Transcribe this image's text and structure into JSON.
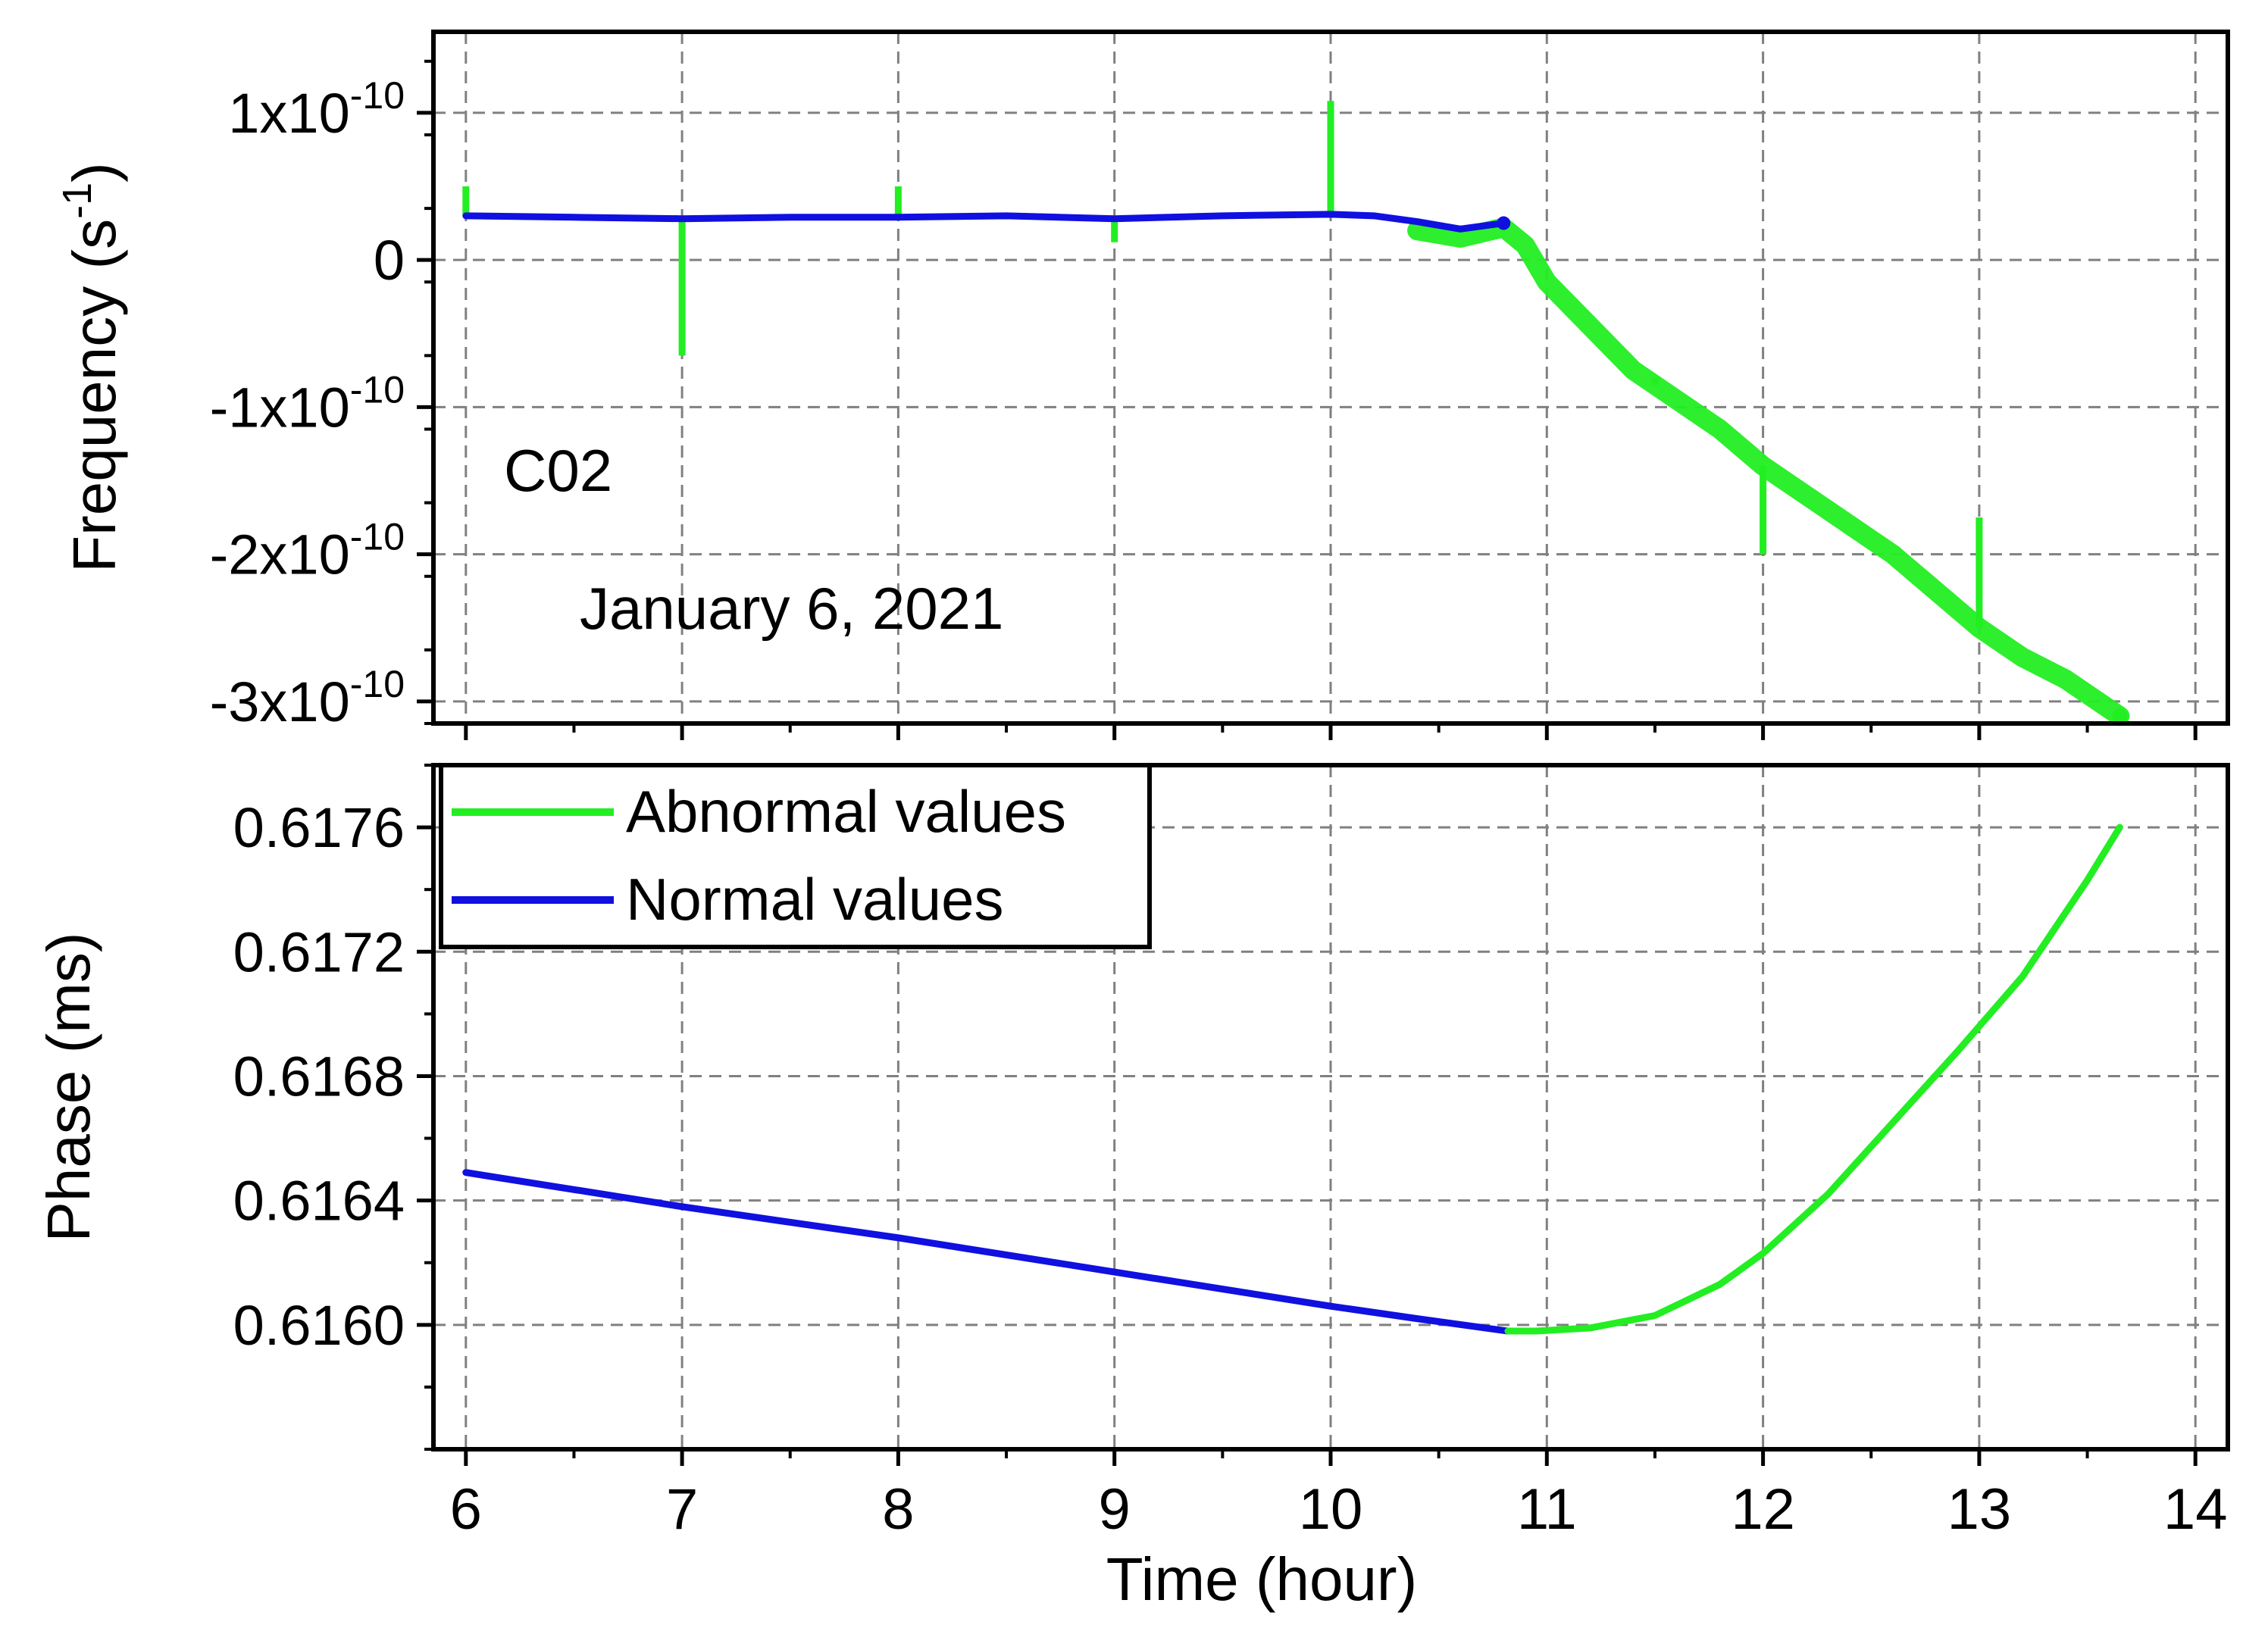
{
  "colors": {
    "normal": "#1010e0",
    "abnormal": "#22ee22",
    "grid": "#808080",
    "axis": "#000000"
  },
  "annotations": {
    "station": "C02",
    "date": "January 6, 2021"
  },
  "chart_data": [
    {
      "id": "frequency",
      "type": "line",
      "title": "",
      "xlabel": "Time (hour)",
      "ylabel": "Frequency (s-1)",
      "ylabel_main": "Frequency (s",
      "ylabel_sup": "-1",
      "ylabel_end": ")",
      "xlim": [
        5.85,
        14.15
      ],
      "ylim": [
        -3.15e-10,
        1.55e-10
      ],
      "xticks": [
        6,
        7,
        8,
        9,
        10,
        11,
        12,
        13,
        14
      ],
      "yticks": [
        {
          "value": 1e-10,
          "mantissa": "1x10",
          "exp": "-10"
        },
        {
          "value": 0,
          "mantissa": "0",
          "exp": ""
        },
        {
          "value": -1e-10,
          "mantissa": "-1x10",
          "exp": "-10"
        },
        {
          "value": -2e-10,
          "mantissa": "-2x10",
          "exp": "-10"
        },
        {
          "value": -3e-10,
          "mantissa": "-3x10",
          "exp": "-10"
        }
      ],
      "grid": true,
      "series": [
        {
          "name": "Normal values",
          "color": "#1010e0",
          "x": [
            6.0,
            6.5,
            7.0,
            7.5,
            8.0,
            8.5,
            9.0,
            9.5,
            10.0,
            10.2,
            10.4,
            10.6,
            10.8
          ],
          "y": [
            3e-11,
            2.9e-11,
            2.8e-11,
            2.9e-11,
            2.9e-11,
            3e-11,
            2.8e-11,
            3e-11,
            3.1e-11,
            3e-11,
            2.6e-11,
            2.1e-11,
            2.5e-11
          ]
        },
        {
          "name": "Abnormal values",
          "color": "#22ee22",
          "x": [
            10.4,
            10.6,
            10.8,
            10.9,
            11.0,
            11.2,
            11.4,
            11.6,
            11.8,
            12.0,
            12.2,
            12.4,
            12.6,
            12.8,
            13.0,
            13.2,
            13.4,
            13.6,
            13.65
          ],
          "y": [
            2e-11,
            1.5e-11,
            2.2e-11,
            1e-11,
            -1.5e-11,
            -4.5e-11,
            -7.5e-11,
            -9.5e-11,
            -1.15e-10,
            -1.4e-10,
            -1.6e-10,
            -1.8e-10,
            -2e-10,
            -2.25e-10,
            -2.5e-10,
            -2.7e-10,
            -2.85e-10,
            -3.05e-10,
            -3.1e-10
          ],
          "spikes": [
            {
              "x": 6.0,
              "y": 5e-11
            },
            {
              "x": 7.0,
              "y": -6.5e-11
            },
            {
              "x": 8.0,
              "y": 5e-11
            },
            {
              "x": 9.0,
              "y": 1.2e-11
            },
            {
              "x": 10.0,
              "y": 1.08e-10
            },
            {
              "x": 11.5,
              "y": -8e-11
            },
            {
              "x": 12.0,
              "y": -2e-10
            },
            {
              "x": 13.0,
              "y": -1.75e-10
            }
          ]
        }
      ]
    },
    {
      "id": "phase",
      "type": "line",
      "title": "",
      "xlabel": "Time (hour)",
      "ylabel": "Phase (ms)",
      "xlim": [
        5.85,
        14.15
      ],
      "ylim": [
        0.6156,
        0.6178
      ],
      "xticks": [
        6,
        7,
        8,
        9,
        10,
        11,
        12,
        13,
        14
      ],
      "yticks": [
        "0.6160",
        "0.6164",
        "0.6168",
        "0.6172",
        "0.6176"
      ],
      "grid": true,
      "legend": {
        "placement": "top-left",
        "entries": [
          {
            "label": "Abnormal values",
            "color": "#22ee22"
          },
          {
            "label": "Normal values",
            "color": "#1010e0"
          }
        ]
      },
      "series": [
        {
          "name": "Normal values",
          "color": "#1010e0",
          "x": [
            6.0,
            7.0,
            8.0,
            9.0,
            10.0,
            10.4,
            10.82
          ],
          "y": [
            0.61649,
            0.61638,
            0.61628,
            0.61617,
            0.61606,
            0.61602,
            0.61598
          ]
        },
        {
          "name": "Abnormal values",
          "color": "#22ee22",
          "x": [
            10.82,
            10.95,
            11.2,
            11.5,
            11.8,
            12.0,
            12.3,
            12.6,
            12.9,
            13.2,
            13.5,
            13.65
          ],
          "y": [
            0.61598,
            0.61598,
            0.61599,
            0.61603,
            0.61613,
            0.61623,
            0.61642,
            0.61665,
            0.61688,
            0.61712,
            0.61743,
            0.6176
          ]
        }
      ]
    }
  ]
}
